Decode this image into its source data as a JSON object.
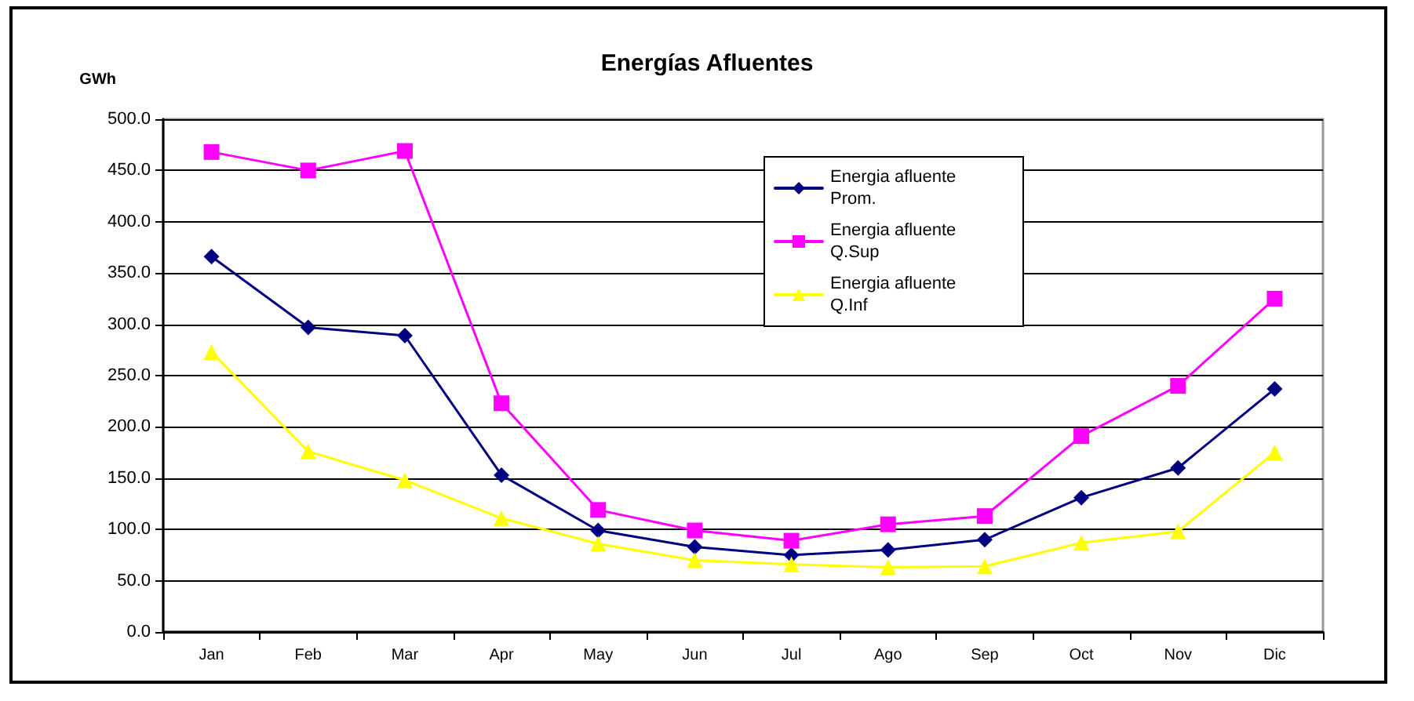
{
  "chart_data": {
    "type": "line",
    "title": "Energías Afluentes",
    "ylabel": "GWh",
    "categories": [
      "Jan",
      "Feb",
      "Mar",
      "Apr",
      "May",
      "Jun",
      "Jul",
      "Ago",
      "Sep",
      "Oct",
      "Nov",
      "Dic"
    ],
    "series": [
      {
        "name": "Energia afluente Prom.",
        "color": "#000080",
        "marker": "diamond",
        "values": [
          366,
          297,
          289,
          153,
          99,
          83,
          75,
          80,
          90,
          131,
          160,
          237
        ]
      },
      {
        "name": "Energia afluente Q.Sup",
        "color": "#ff00ff",
        "marker": "square",
        "values": [
          468,
          450,
          469,
          223,
          119,
          99,
          89,
          105,
          113,
          191,
          240,
          325
        ]
      },
      {
        "name": "Energia afluente Q.Inf",
        "color": "#ffff00",
        "marker": "triangle",
        "values": [
          273,
          176,
          148,
          111,
          86,
          70,
          66,
          63,
          64,
          87,
          98,
          175
        ]
      }
    ],
    "ylim": [
      0,
      500
    ],
    "yticks": [
      {
        "value": 0,
        "label": "0.0"
      },
      {
        "value": 50,
        "label": "50.0"
      },
      {
        "value": 100,
        "label": "100.0"
      },
      {
        "value": 150,
        "label": "150.0"
      },
      {
        "value": 200,
        "label": "200.0"
      },
      {
        "value": 250,
        "label": "250.0"
      },
      {
        "value": 300,
        "label": "300.0"
      },
      {
        "value": 350,
        "label": "350.0"
      },
      {
        "value": 400,
        "label": "400.0"
      },
      {
        "value": 450,
        "label": "450.0"
      },
      {
        "value": 500,
        "label": "500.0"
      }
    ],
    "grid": "y",
    "legend": "top right",
    "line_style": "solid"
  }
}
